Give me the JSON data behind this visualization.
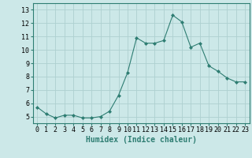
{
  "x": [
    0,
    1,
    2,
    3,
    4,
    5,
    6,
    7,
    8,
    9,
    10,
    11,
    12,
    13,
    14,
    15,
    16,
    17,
    18,
    19,
    20,
    21,
    22,
    23
  ],
  "y": [
    5.7,
    5.2,
    4.9,
    5.1,
    5.1,
    4.9,
    4.9,
    5.0,
    5.4,
    6.6,
    8.3,
    10.9,
    10.5,
    10.5,
    10.7,
    12.6,
    12.1,
    10.2,
    10.5,
    8.8,
    8.4,
    7.9,
    7.6,
    7.6
  ],
  "line_color": "#2e7d72",
  "marker": "D",
  "marker_size": 2,
  "bg_color": "#cce8e8",
  "grid_color": "#aed0d0",
  "xlabel": "Humidex (Indice chaleur)",
  "ylim": [
    4.5,
    13.5
  ],
  "xlim": [
    -0.5,
    23.5
  ],
  "yticks": [
    5,
    6,
    7,
    8,
    9,
    10,
    11,
    12,
    13
  ],
  "xticks": [
    0,
    1,
    2,
    3,
    4,
    5,
    6,
    7,
    8,
    9,
    10,
    11,
    12,
    13,
    14,
    15,
    16,
    17,
    18,
    19,
    20,
    21,
    22,
    23
  ],
  "tick_label_fontsize": 6,
  "xlabel_fontsize": 7
}
